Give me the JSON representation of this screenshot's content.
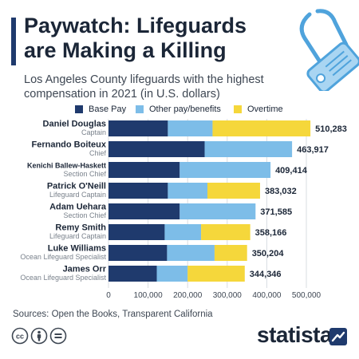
{
  "title_line1": "Paywatch: Lifeguards",
  "title_line2": "are Making a Killing",
  "subtitle_line1": "Los Angeles County lifeguards with the highest",
  "subtitle_line2": "compensation in 2021 (in U.S. dollars)",
  "sources": "Sources: Open the Books, Transparent California",
  "brand": "statista",
  "colors": {
    "base": "#1f3a6d",
    "other": "#7dbde8",
    "overtime": "#f5d73b",
    "text": "#1b2637",
    "muted": "#7a828c"
  },
  "icons": [
    "paperclip-tag-icon",
    "cc-icon",
    "attribution-icon",
    "no-derivatives-icon",
    "statista-logo-icon"
  ],
  "chart_data": {
    "type": "bar",
    "orientation": "horizontal",
    "stacked": true,
    "legend_position": "top",
    "grid": true,
    "xlim": [
      0,
      500000
    ],
    "ticks": [
      0,
      100000,
      200000,
      300000,
      400000,
      500000
    ],
    "tick_labels": [
      "0",
      "100,000",
      "200,000",
      "300,000",
      "400,000",
      "500,000"
    ],
    "categories": [
      "Daniel Douglas",
      "Fernando Boiteux",
      "Kenichi Ballew-Haskett",
      "Patrick O'Neill",
      "Adam Uehara",
      "Remy Smith",
      "Luke Williams",
      "James Orr"
    ],
    "roles": [
      "Captain",
      "Chief",
      "Section Chief",
      "Lifeguard Captain",
      "Section Chief",
      "Lifeguard Captain",
      "Ocean Lifeguard Specialist",
      "Ocean Lifeguard Specialist"
    ],
    "series": [
      {
        "name": "Base Pay",
        "values": [
          150000,
          243000,
          180000,
          150000,
          180000,
          142000,
          148000,
          122000
        ]
      },
      {
        "name": "Other pay/benefits",
        "values": [
          113000,
          220917,
          229414,
          100000,
          191585,
          92000,
          120000,
          78000
        ]
      },
      {
        "name": "Overtime",
        "values": [
          247283,
          0,
          0,
          133032,
          0,
          124166,
          82204,
          144346
        ]
      }
    ],
    "totals": [
      510283,
      463917,
      409414,
      383032,
      371585,
      358166,
      350204,
      344346
    ],
    "total_labels": [
      "510,283",
      "463,917",
      "409,414",
      "383,032",
      "371,585",
      "358,166",
      "350,204",
      "344,346"
    ]
  }
}
